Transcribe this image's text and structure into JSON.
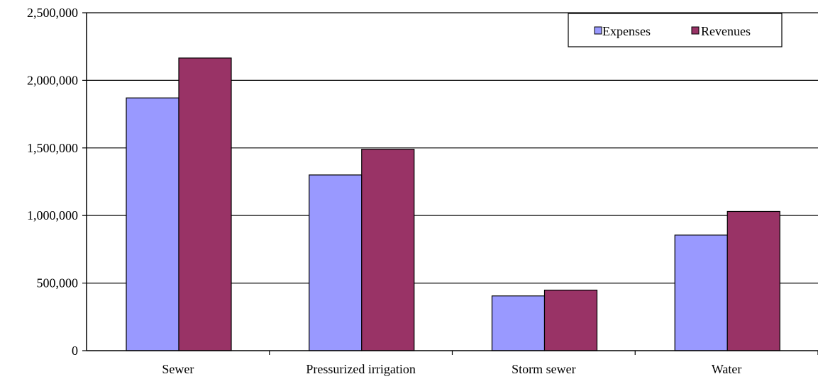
{
  "chart_data": {
    "type": "bar",
    "title": "",
    "xlabel": "",
    "ylabel": "",
    "categories": [
      "Sewer",
      "Pressurized irrigation",
      "Storm sewer",
      "Water"
    ],
    "series": [
      {
        "name": "Expenses",
        "color": "#9999ff",
        "values": [
          1870000,
          1300000,
          405000,
          855000
        ]
      },
      {
        "name": "Revenues",
        "color": "#993366",
        "values": [
          2165000,
          1490000,
          448000,
          1030000
        ]
      }
    ],
    "ylim": [
      0,
      2500000
    ],
    "yticks": [
      0,
      500000,
      1000000,
      1500000,
      2000000,
      2500000
    ],
    "ytick_labels": [
      "0",
      "500,000",
      "1,000,000",
      "1,500,000",
      "2,000,000",
      "2,500,000"
    ],
    "grid": true,
    "legend_position": "top-right"
  }
}
